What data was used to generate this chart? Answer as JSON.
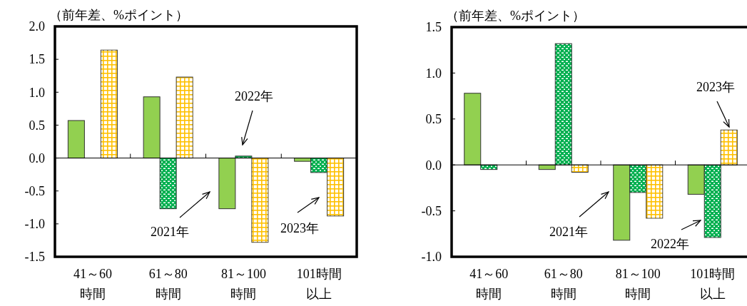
{
  "chart_data": [
    {
      "type": "bar",
      "ylabel": "（前年差、%ポイント）",
      "categories": [
        "41～60時間",
        "61～80時間",
        "81～100時間",
        "101時間以上"
      ],
      "series": [
        {
          "color": "#92d050",
          "values": [
            0.57,
            0.93,
            -0.77,
            -0.05
          ]
        },
        {
          "color": "#00b050",
          "values": [
            null,
            -0.77,
            0.03,
            -0.22
          ]
        },
        {
          "color": "#ffc000",
          "values": [
            1.64,
            1.23,
            -1.28,
            -0.88
          ]
        }
      ],
      "ylim": [
        -1.5,
        2.0
      ],
      "yticks": [
        {
          "value": -1.5,
          "label": "-1.5"
        },
        {
          "value": -1.0,
          "label": "-1.0"
        },
        {
          "value": -0.5,
          "label": "-0.5"
        },
        {
          "value": 0,
          "label": "0.0"
        },
        {
          "value": 0.5,
          "label": "0.5"
        },
        {
          "value": 1.0,
          "label": "1.0"
        },
        {
          "value": 1.5,
          "label": "1.5"
        },
        {
          "value": 2.0,
          "label": "2.0"
        }
      ],
      "annotations": [
        "2022年",
        "2021年",
        "2023年"
      ]
    },
    {
      "type": "bar",
      "ylabel": "（前年差、%ポイント）",
      "categories": [
        "41～60時間",
        "61～80時間",
        "81～100時間",
        "101時間以上"
      ],
      "series": [
        {
          "color": "#92d050",
          "values": [
            0.78,
            -0.05,
            -0.82,
            -0.32
          ]
        },
        {
          "color": "#00b050",
          "values": [
            -0.05,
            1.32,
            -0.3,
            -0.79
          ]
        },
        {
          "color": "#ffc000",
          "values": [
            null,
            -0.08,
            -0.58,
            0.38
          ]
        }
      ],
      "ylim": [
        -1.0,
        1.5
      ],
      "yticks": [
        {
          "value": -1.0,
          "label": "-1.0"
        },
        {
          "value": -0.5,
          "label": "-0.5"
        },
        {
          "value": 0,
          "label": "0.0"
        },
        {
          "value": 0.5,
          "label": "0.5"
        },
        {
          "value": 1.0,
          "label": "1.0"
        },
        {
          "value": 1.5,
          "label": "1.5"
        }
      ],
      "annotations": [
        "2023年",
        "2021年",
        "2022年"
      ]
    }
  ]
}
